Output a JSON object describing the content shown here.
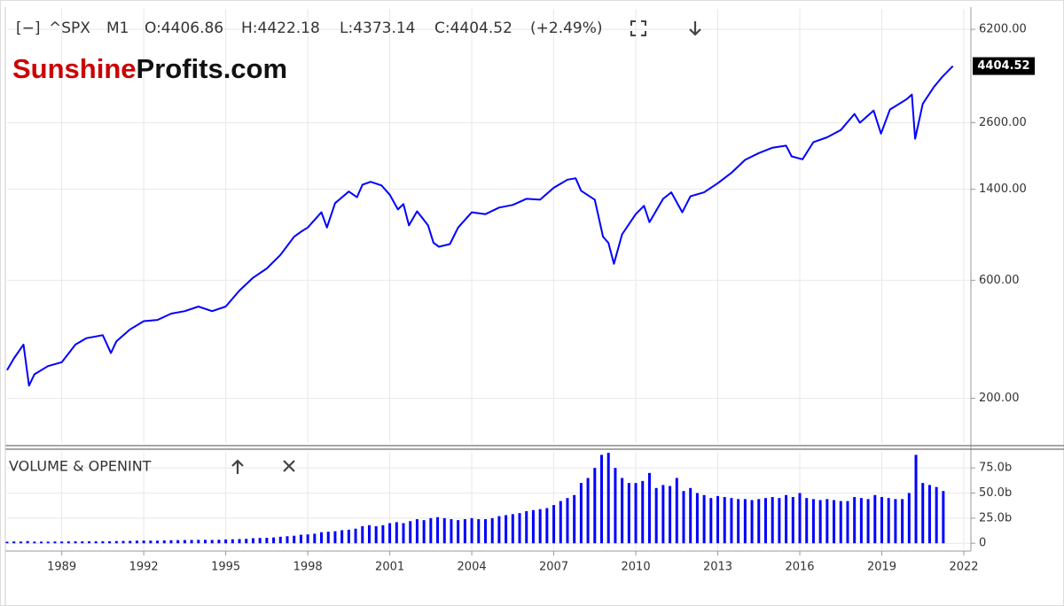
{
  "header": {
    "items": [
      "[−]",
      "^SPX",
      "M1",
      "O:4406.86",
      "H:4422.18",
      "L:4373.14",
      "C:4404.52",
      "(+2.49%)"
    ]
  },
  "logo": {
    "part1": "Sunshine",
    "part2": "Profits.com"
  },
  "chart_data": [
    {
      "type": "line",
      "color": "#0000ff",
      "log_scale": true,
      "grid": true,
      "xlim": [
        1987,
        2022.26
      ],
      "ylim": [
        132,
        7500
      ],
      "yticks": [
        {
          "value": 200,
          "label": "200.00"
        },
        {
          "value": 600,
          "label": "600.00"
        },
        {
          "value": 1400,
          "label": "1400.00"
        },
        {
          "value": 2600,
          "label": "2600.00"
        },
        {
          "value": 6200,
          "label": "6200.00"
        }
      ],
      "current_value": 4404.52,
      "x": [
        1987.0,
        1987.25,
        1987.6,
        1987.8,
        1988.0,
        1988.5,
        1989.0,
        1989.5,
        1989.9,
        1990.5,
        1990.8,
        1991.0,
        1991.5,
        1992.0,
        1992.5,
        1993.0,
        1993.5,
        1994.0,
        1994.5,
        1995.0,
        1995.5,
        1996.0,
        1996.5,
        1997.0,
        1997.5,
        1997.8,
        1998.0,
        1998.5,
        1998.7,
        1999.0,
        1999.5,
        1999.8,
        2000.0,
        2000.3,
        2000.7,
        2001.0,
        2001.3,
        2001.5,
        2001.7,
        2002.0,
        2002.4,
        2002.6,
        2002.8,
        2003.2,
        2003.5,
        2004.0,
        2004.5,
        2005.0,
        2005.5,
        2006.0,
        2006.5,
        2007.0,
        2007.5,
        2007.8,
        2008.0,
        2008.5,
        2008.8,
        2009.0,
        2009.2,
        2009.5,
        2010.0,
        2010.3,
        2010.5,
        2011.0,
        2011.3,
        2011.7,
        2012.0,
        2012.5,
        2013.0,
        2013.5,
        2014.0,
        2014.5,
        2015.0,
        2015.5,
        2015.7,
        2016.1,
        2016.5,
        2017.0,
        2017.5,
        2018.0,
        2018.2,
        2018.7,
        2018.97,
        2019.3,
        2019.9,
        2020.1,
        2020.22,
        2020.5,
        2020.9,
        2021.2,
        2021.6
      ],
      "values": [
        260,
        290,
        330,
        225,
        250,
        270,
        280,
        330,
        350,
        360,
        305,
        340,
        380,
        410,
        415,
        440,
        450,
        470,
        450,
        470,
        545,
        615,
        670,
        760,
        900,
        950,
        980,
        1130,
        980,
        1230,
        1370,
        1300,
        1460,
        1500,
        1450,
        1330,
        1160,
        1220,
        1000,
        1140,
        1000,
        850,
        820,
        840,
        980,
        1130,
        1110,
        1180,
        1210,
        1280,
        1270,
        1420,
        1530,
        1550,
        1380,
        1270,
        900,
        850,
        700,
        920,
        1110,
        1200,
        1030,
        1280,
        1360,
        1130,
        1310,
        1360,
        1480,
        1630,
        1840,
        1960,
        2060,
        2100,
        1900,
        1850,
        2170,
        2270,
        2430,
        2820,
        2600,
        2910,
        2350,
        2940,
        3230,
        3380,
        2240,
        3100,
        3620,
        3970,
        4404.52
      ]
    },
    {
      "type": "bar",
      "title": "VOLUME & OPENINT",
      "color": "#0000ff",
      "grid": true,
      "xlim": [
        1987,
        2022.26
      ],
      "ylim": [
        -6,
        91
      ],
      "xticks": [
        1989,
        1992,
        1995,
        1998,
        2001,
        2004,
        2007,
        2010,
        2013,
        2016,
        2019,
        2022
      ],
      "yticks": [
        0,
        {
          "value": 25,
          "label": "25.0b"
        },
        {
          "value": 50,
          "label": "50.0b"
        },
        {
          "value": 75,
          "label": "75.0b"
        }
      ],
      "x": [
        1987,
        1987.25,
        1987.5,
        1987.75,
        1988,
        1988.25,
        1988.5,
        1988.75,
        1989,
        1989.25,
        1989.5,
        1989.75,
        1990,
        1990.25,
        1990.5,
        1990.75,
        1991,
        1991.25,
        1991.5,
        1991.75,
        1992,
        1992.25,
        1992.5,
        1992.75,
        1993,
        1993.25,
        1993.5,
        1993.75,
        1994,
        1994.25,
        1994.5,
        1994.75,
        1995,
        1995.25,
        1995.5,
        1995.75,
        1996,
        1996.25,
        1996.5,
        1996.75,
        1997,
        1997.25,
        1997.5,
        1997.75,
        1998,
        1998.25,
        1998.5,
        1998.75,
        1999,
        1999.25,
        1999.5,
        1999.75,
        2000,
        2000.25,
        2000.5,
        2000.75,
        2001,
        2001.25,
        2001.5,
        2001.75,
        2002,
        2002.25,
        2002.5,
        2002.75,
        2003,
        2003.25,
        2003.5,
        2003.75,
        2004,
        2004.25,
        2004.5,
        2004.75,
        2005,
        2005.25,
        2005.5,
        2005.75,
        2006,
        2006.25,
        2006.5,
        2006.75,
        2007,
        2007.25,
        2007.5,
        2007.75,
        2008,
        2008.25,
        2008.5,
        2008.75,
        2009,
        2009.25,
        2009.5,
        2009.75,
        2010,
        2010.25,
        2010.5,
        2010.75,
        2011,
        2011.25,
        2011.5,
        2011.75,
        2012,
        2012.25,
        2012.5,
        2012.75,
        2013,
        2013.25,
        2013.5,
        2013.75,
        2014,
        2014.25,
        2014.5,
        2014.75,
        2015,
        2015.25,
        2015.5,
        2015.75,
        2016,
        2016.25,
        2016.5,
        2016.75,
        2017,
        2017.25,
        2017.5,
        2017.75,
        2018,
        2018.25,
        2018.5,
        2018.75,
        2019,
        2019.25,
        2019.5,
        2019.75,
        2020,
        2020.25,
        2020.5,
        2020.75,
        2021,
        2021.25
      ],
      "values": [
        1.5,
        1.8,
        1.7,
        2.2,
        1.6,
        1.6,
        1.6,
        1.7,
        1.7,
        1.8,
        1.9,
        1.9,
        1.9,
        1.9,
        2.0,
        2.0,
        2.2,
        2.3,
        2.4,
        2.6,
        2.7,
        2.6,
        2.6,
        2.8,
        3.0,
        3.1,
        3.2,
        3.3,
        3.4,
        3.4,
        3.3,
        3.5,
        3.8,
        4.0,
        4.2,
        4.4,
        5.0,
        5.3,
        5.4,
        5.8,
        6.5,
        7.0,
        7.5,
        8.5,
        8.8,
        9.5,
        11,
        11.5,
        12,
        13,
        13.5,
        14.5,
        17,
        18,
        17,
        18,
        20,
        21,
        20,
        22,
        24,
        23,
        25,
        26,
        25,
        24,
        23,
        24,
        25,
        24,
        24,
        25,
        27,
        28,
        29,
        30,
        32,
        33,
        34,
        35,
        38,
        42,
        45,
        48,
        60,
        65,
        75,
        88,
        90,
        75,
        65,
        60,
        60,
        62,
        70,
        55,
        58,
        57,
        65,
        52,
        55,
        50,
        48,
        45,
        47,
        46,
        45,
        44,
        44,
        43,
        44,
        45,
        46,
        45,
        48,
        46,
        50,
        45,
        44,
        43,
        44,
        43,
        42,
        42,
        46,
        45,
        44,
        48,
        46,
        45,
        44,
        44,
        50,
        88,
        60,
        58,
        56,
        52
      ]
    }
  ]
}
